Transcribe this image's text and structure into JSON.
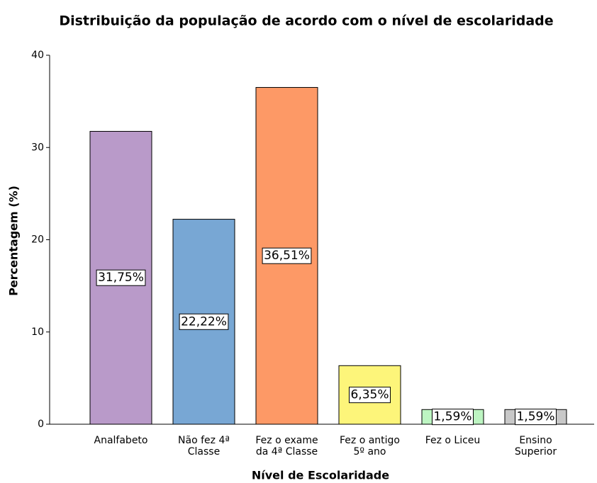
{
  "chart_data": {
    "type": "bar",
    "title": "Distribuição da população de acordo com o nível de escolaridade",
    "x_label": "Nível de Escolaridade",
    "y_label": "Percentagem (%)",
    "categories": [
      [
        "Analfabeto"
      ],
      [
        "Não fez 4ª",
        "Classe"
      ],
      [
        "Fez o exame",
        "da 4ª Classe"
      ],
      [
        "Fez o antigo",
        "5º ano"
      ],
      [
        "Fez o Liceu"
      ],
      [
        "Ensino",
        "Superior"
      ]
    ],
    "values": [
      31.75,
      22.22,
      36.51,
      6.35,
      1.59,
      1.59
    ],
    "value_labels": [
      "31,75%",
      "22,22%",
      "36,51%",
      "6,35%",
      "1,59%",
      "1,59%"
    ],
    "colors": [
      "#b99ac9",
      "#78a7d4",
      "#fd9966",
      "#fdf57a",
      "#bdf5c2",
      "#c8c8c8"
    ],
    "ylim": [
      0,
      40
    ],
    "yticks": [
      0,
      10,
      20,
      30,
      40
    ],
    "grid": false
  }
}
